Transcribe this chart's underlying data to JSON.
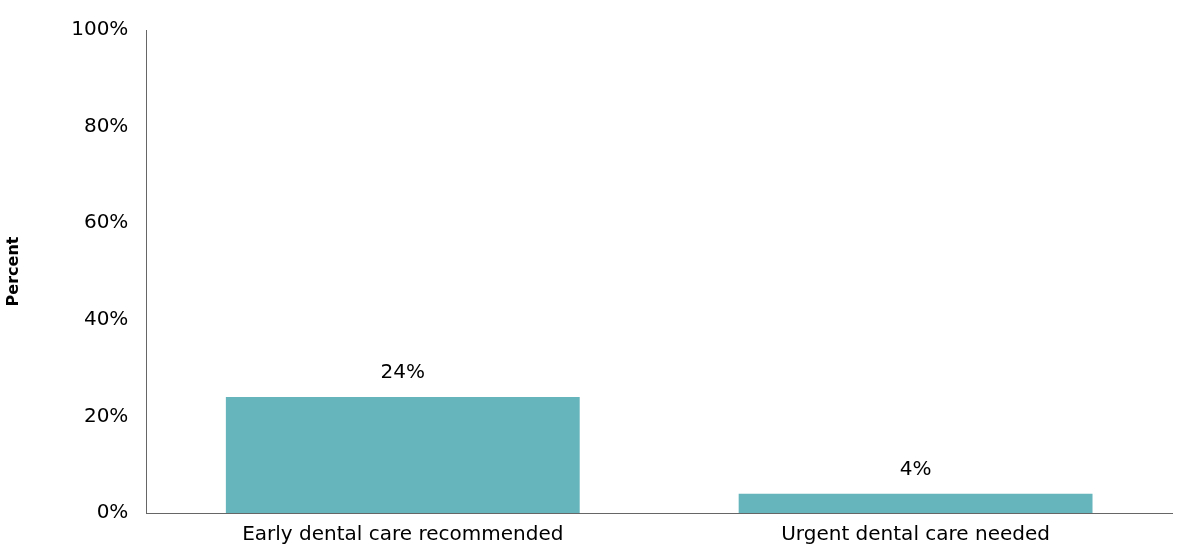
{
  "chart_data": {
    "type": "bar",
    "ylabel": "Percent",
    "categories": [
      "Early dental care recommended",
      "Urgent dental care needed"
    ],
    "values": [
      24,
      4
    ],
    "color": "#66b5bd",
    "value_labels": [
      "24%",
      "4%"
    ],
    "ylim": [
      0,
      100
    ],
    "yticks": [
      {
        "value": 0,
        "label": "0%"
      },
      {
        "value": 20,
        "label": "20%"
      },
      {
        "value": 40,
        "label": "40%"
      },
      {
        "value": 60,
        "label": "60%"
      },
      {
        "value": 80,
        "label": "80%"
      },
      {
        "value": 100,
        "label": "100%"
      }
    ],
    "grid": false,
    "legend": false
  }
}
